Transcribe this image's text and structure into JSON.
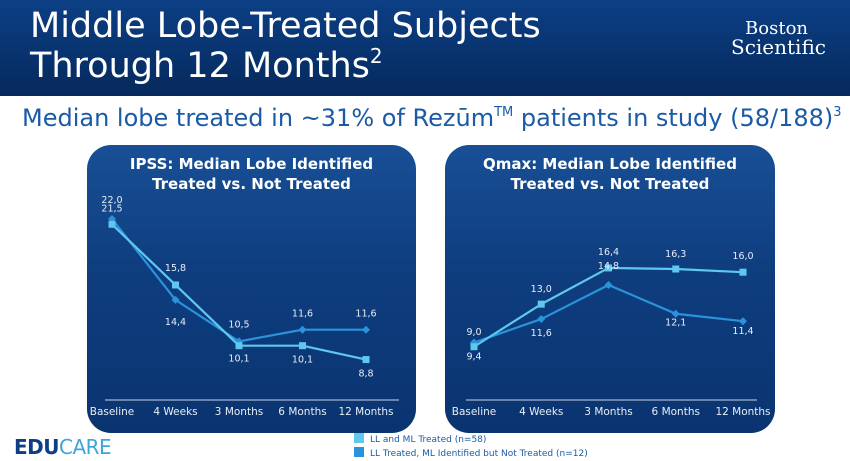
{
  "slide": {
    "title_line1": "Middle Lobe-Treated Subjects",
    "title_line2": "Through 12 Months",
    "title_ref": "2",
    "subtitle_main": "Median lobe treated in ~31% of Rezūm",
    "subtitle_tm": "TM",
    "subtitle_rest": " patients in study (58/188)",
    "subtitle_ref": "3",
    "brand_line1": "Boston",
    "brand_line2": "Scientific",
    "logo_part1": "EDU",
    "logo_part2": "CARE"
  },
  "colors": {
    "series_a": "#5ec8ef",
    "series_b": "#2a93dc",
    "axis": "#c9d6e8",
    "label": "#e6eef8"
  },
  "legend": {
    "items": [
      "LL and ML Treated (n=58)",
      "LL Treated, ML Identified but Not Treated (n=12)"
    ]
  },
  "chart_data": [
    {
      "type": "line",
      "title_line1": "IPSS: Median Lobe Identified",
      "title_line2": "Treated vs. Not Treated",
      "categories": [
        "Baseline",
        "4 Weeks",
        "3 Months",
        "6 Months",
        "12 Months"
      ],
      "series": [
        {
          "name": "LL and ML Treated (n=58)",
          "values": [
            21.5,
            15.8,
            10.1,
            10.1,
            8.8
          ],
          "labels": [
            "21,5",
            "15,8",
            "10,1",
            "10,1",
            "8,8"
          ],
          "marker": "square"
        },
        {
          "name": "LL Treated, ML Identified but Not Treated (n=12)",
          "values": [
            22.0,
            14.4,
            10.5,
            11.6,
            11.6
          ],
          "labels": [
            "22,0",
            "14,4",
            "10,5",
            "11,6",
            "11,6"
          ],
          "marker": "diamond"
        }
      ],
      "ylim": [
        5,
        25
      ],
      "grid": false
    },
    {
      "type": "line",
      "title_line1": "Qmax: Median Lobe Identified",
      "title_line2": "Treated vs. Not Treated",
      "categories": [
        "Baseline",
        "4 Weeks",
        "3 Months",
        "6 Months",
        "12 Months"
      ],
      "series": [
        {
          "name": "LL and ML Treated (n=58)",
          "values": [
            9.0,
            13.0,
            16.4,
            16.3,
            16.0
          ],
          "labels": [
            "9,0",
            "13,0",
            "16,4",
            "16,3",
            "16,0"
          ],
          "marker": "square"
        },
        {
          "name": "LL Treated, ML Identified but Not Treated (n=12)",
          "values": [
            9.4,
            11.6,
            14.8,
            12.1,
            11.4
          ],
          "labels": [
            "9,4",
            "11,6",
            "14,8",
            "12,1",
            "11,4"
          ],
          "marker": "diamond"
        }
      ],
      "ylim": [
        4,
        24
      ],
      "grid": false
    }
  ]
}
